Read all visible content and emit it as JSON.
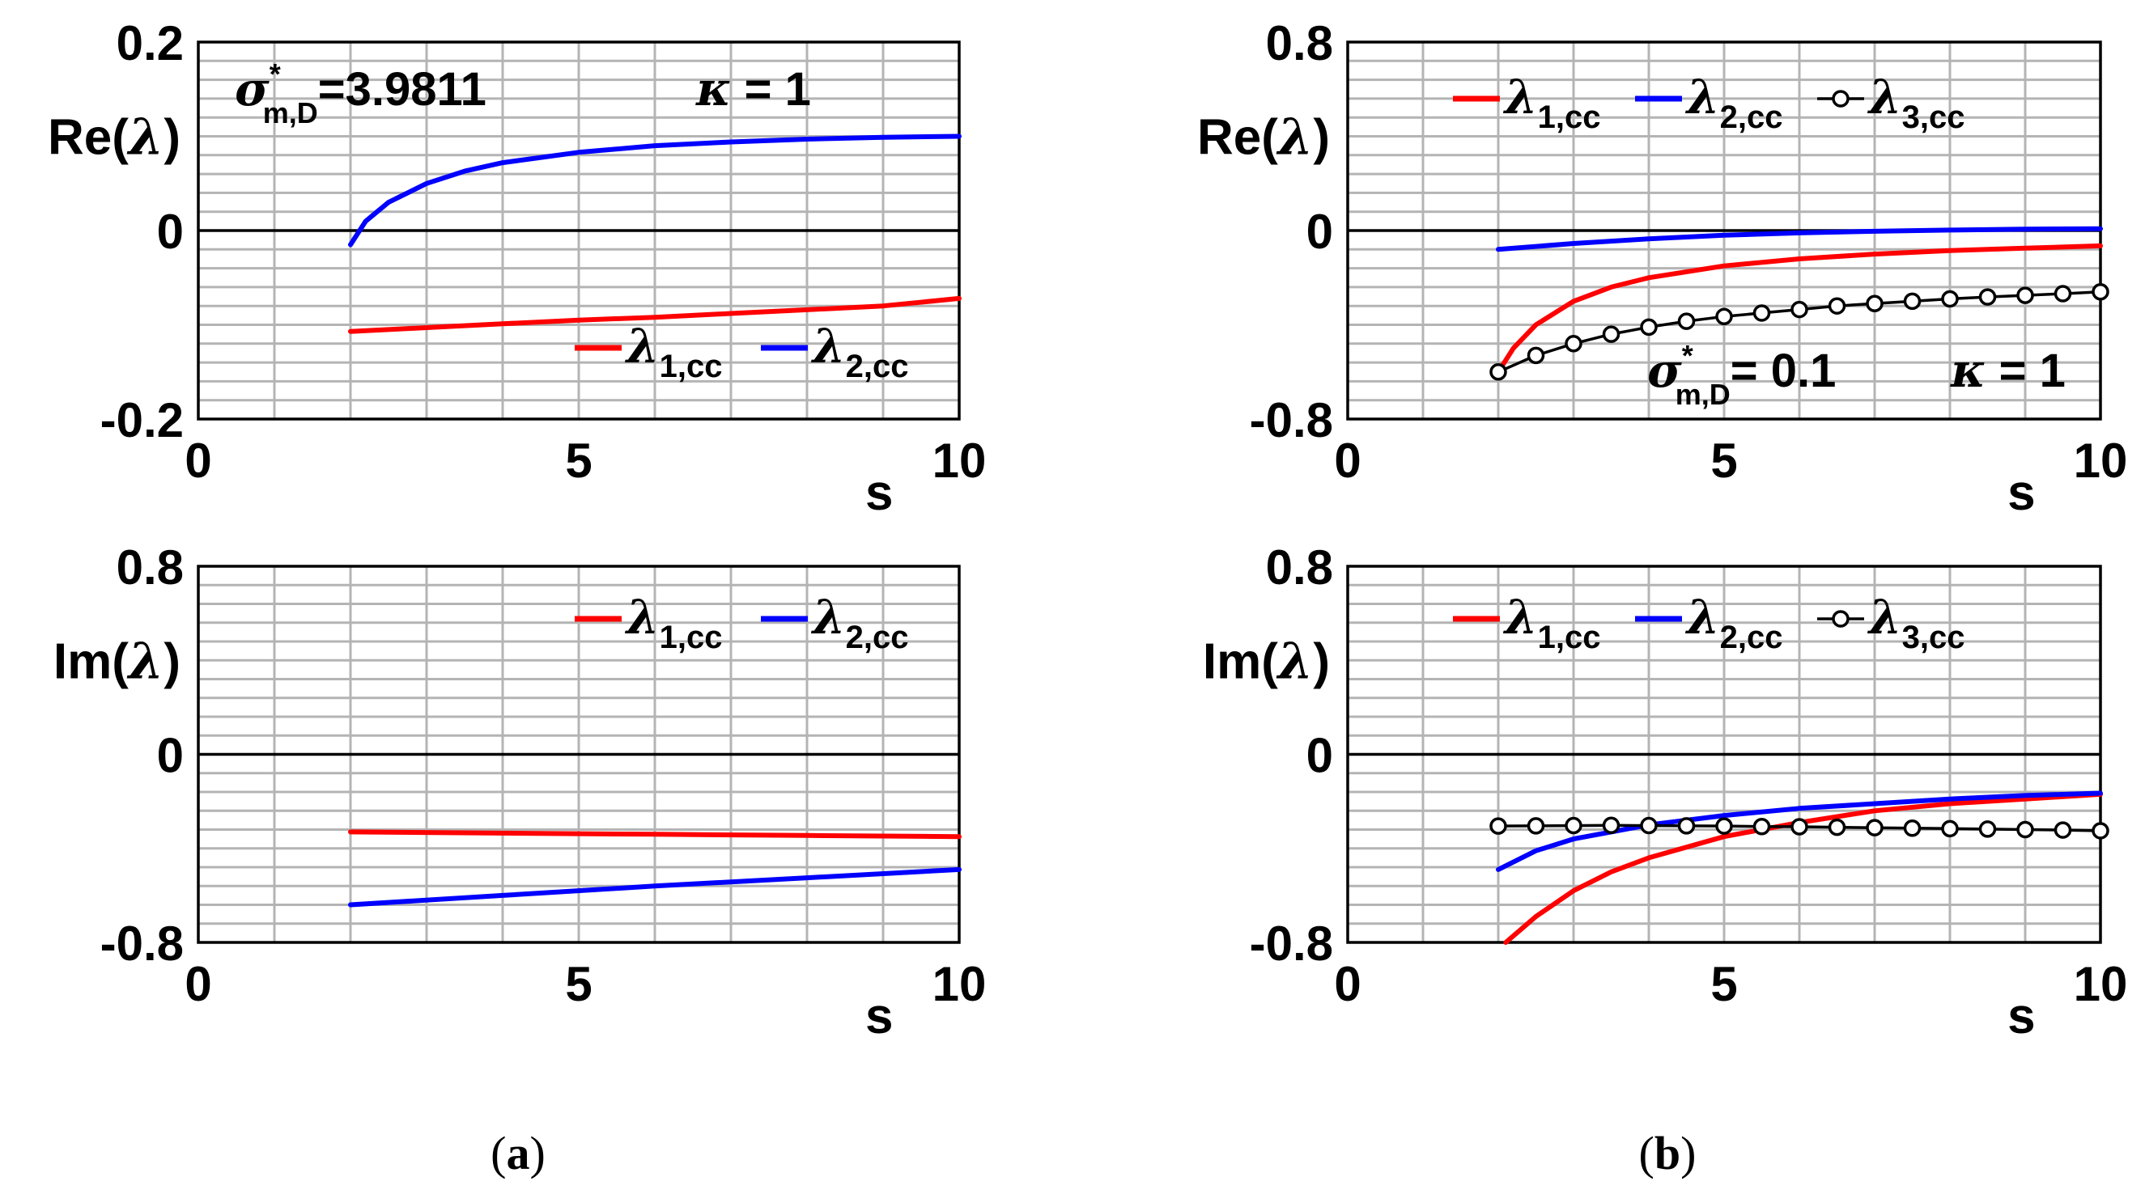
{
  "colors": {
    "lambda1": "#ff0000",
    "lambda2": "#0000ff",
    "lambda3": "#000000",
    "grid": "#b4b4b4",
    "zero_line": "#000000"
  },
  "chart_data": [
    {
      "id": "a_re",
      "type": "line",
      "panel": "(a)",
      "ylabel": "Re(λ)",
      "xlabel": "s",
      "xlim": [
        0,
        10
      ],
      "ylim": [
        -0.2,
        0.2
      ],
      "xticks": [
        "0",
        "5",
        "10"
      ],
      "yticks": [
        "-0.2",
        "0",
        "0.2"
      ],
      "annotations": [
        {
          "sym": "σ",
          "sup": "*",
          "sub": "m,D",
          "text": "=3.9811"
        },
        {
          "sym": "κ",
          "text": " = 1"
        }
      ],
      "legend": [
        "λ1,cc",
        "λ2,cc"
      ],
      "series": [
        {
          "name": "λ1,cc",
          "color": "#ff0000",
          "x": [
            2,
            3,
            4,
            5,
            6,
            7,
            8,
            9,
            10
          ],
          "y": [
            -0.107,
            -0.103,
            -0.099,
            -0.095,
            -0.092,
            -0.088,
            -0.084,
            -0.08,
            -0.072
          ]
        },
        {
          "name": "λ2,cc",
          "color": "#0000ff",
          "x": [
            2,
            2.2,
            2.5,
            3,
            3.5,
            4,
            5,
            6,
            7,
            8,
            9,
            10
          ],
          "y": [
            -0.015,
            0.01,
            0.03,
            0.05,
            0.063,
            0.072,
            0.083,
            0.09,
            0.094,
            0.097,
            0.099,
            0.1
          ]
        }
      ]
    },
    {
      "id": "a_im",
      "type": "line",
      "panel": "(a)",
      "ylabel": "Im(λ)",
      "xlabel": "s",
      "xlim": [
        0,
        10
      ],
      "ylim": [
        -0.8,
        0.8
      ],
      "xticks": [
        "0",
        "5",
        "10"
      ],
      "yticks": [
        "-0.8",
        "0",
        "0.8"
      ],
      "legend": [
        "λ1,cc",
        "λ2,cc"
      ],
      "series": [
        {
          "name": "λ1,cc",
          "color": "#ff0000",
          "x": [
            2,
            4,
            6,
            8,
            10
          ],
          "y": [
            -0.33,
            -0.335,
            -0.34,
            -0.345,
            -0.35
          ]
        },
        {
          "name": "λ2,cc",
          "color": "#0000ff",
          "x": [
            2,
            4,
            6,
            8,
            10
          ],
          "y": [
            -0.64,
            -0.6,
            -0.56,
            -0.525,
            -0.49
          ]
        }
      ]
    },
    {
      "id": "b_re",
      "type": "line",
      "panel": "(b)",
      "ylabel": "Re(λ)",
      "xlabel": "s",
      "xlim": [
        0,
        10
      ],
      "ylim": [
        -0.8,
        0.8
      ],
      "xticks": [
        "0",
        "5",
        "10"
      ],
      "yticks": [
        "-0.8",
        "0",
        "0.8"
      ],
      "annotations": [
        {
          "sym": "σ",
          "sup": "*",
          "sub": "m,D",
          "text": "=  0.1"
        },
        {
          "sym": "κ",
          "text": " = 1"
        }
      ],
      "legend": [
        "λ1,cc",
        "λ2,cc",
        "λ3,cc"
      ],
      "series": [
        {
          "name": "λ1,cc",
          "color": "#ff0000",
          "x": [
            2,
            2.2,
            2.5,
            3,
            3.5,
            4,
            5,
            6,
            7,
            8,
            9,
            10
          ],
          "y": [
            -0.6,
            -0.5,
            -0.4,
            -0.3,
            -0.24,
            -0.2,
            -0.15,
            -0.12,
            -0.1,
            -0.085,
            -0.075,
            -0.065
          ]
        },
        {
          "name": "λ2,cc",
          "color": "#0000ff",
          "x": [
            2,
            3,
            4,
            5,
            6,
            7,
            8,
            9,
            10
          ],
          "y": [
            -0.08,
            -0.055,
            -0.035,
            -0.02,
            -0.01,
            -0.003,
            0.002,
            0.006,
            0.008
          ]
        },
        {
          "name": "λ3,cc",
          "color": "#000000",
          "markers": true,
          "x": [
            2,
            2.5,
            3,
            3.5,
            4,
            4.5,
            5,
            5.5,
            6,
            6.5,
            7,
            7.5,
            8,
            8.5,
            9,
            9.5,
            10
          ],
          "y": [
            -0.6,
            -0.53,
            -0.48,
            -0.44,
            -0.41,
            -0.385,
            -0.365,
            -0.35,
            -0.335,
            -0.32,
            -0.31,
            -0.3,
            -0.29,
            -0.282,
            -0.275,
            -0.268,
            -0.26
          ]
        }
      ]
    },
    {
      "id": "b_im",
      "type": "line",
      "panel": "(b)",
      "ylabel": "Im(λ)",
      "xlabel": "s",
      "xlim": [
        0,
        10
      ],
      "ylim": [
        -0.8,
        0.8
      ],
      "xticks": [
        "0",
        "5",
        "10"
      ],
      "yticks": [
        "-0.8",
        "0",
        "0.8"
      ],
      "legend": [
        "λ1,cc",
        "λ2,cc",
        "λ3,cc"
      ],
      "series": [
        {
          "name": "λ1,cc",
          "color": "#ff0000",
          "x": [
            2.1,
            2.5,
            3,
            3.5,
            4,
            5,
            6,
            7,
            8,
            9,
            10
          ],
          "y": [
            -0.8,
            -0.69,
            -0.58,
            -0.5,
            -0.44,
            -0.35,
            -0.29,
            -0.24,
            -0.21,
            -0.19,
            -0.17
          ]
        },
        {
          "name": "λ2,cc",
          "color": "#0000ff",
          "x": [
            2,
            2.5,
            3,
            3.5,
            4,
            5,
            6,
            7,
            8,
            9,
            10
          ],
          "y": [
            -0.49,
            -0.41,
            -0.36,
            -0.33,
            -0.3,
            -0.26,
            -0.23,
            -0.21,
            -0.19,
            -0.175,
            -0.165
          ]
        },
        {
          "name": "λ3,cc",
          "color": "#000000",
          "markers": true,
          "x": [
            2,
            2.5,
            3,
            3.5,
            4,
            4.5,
            5,
            5.5,
            6,
            6.5,
            7,
            7.5,
            8,
            8.5,
            9,
            9.5,
            10
          ],
          "y": [
            -0.305,
            -0.304,
            -0.303,
            -0.302,
            -0.303,
            -0.304,
            -0.305,
            -0.307,
            -0.308,
            -0.31,
            -0.312,
            -0.314,
            -0.316,
            -0.318,
            -0.32,
            -0.322,
            -0.325
          ]
        }
      ]
    }
  ],
  "captions": {
    "a": "a",
    "b": "b"
  }
}
